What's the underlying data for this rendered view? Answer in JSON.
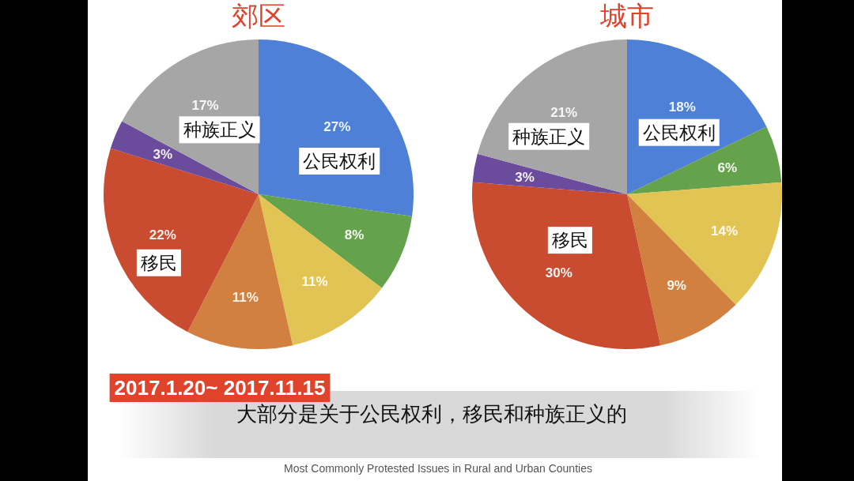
{
  "chart_data": [
    {
      "type": "pie",
      "title": "郊区",
      "categories": [
        "公民权利",
        null,
        null,
        null,
        "移民",
        null,
        "种族正义"
      ],
      "values": [
        27,
        8,
        11,
        11,
        22,
        3,
        17
      ],
      "colors": [
        "#4d80d6",
        "#64a24c",
        "#e2c454",
        "#d2803f",
        "#c94b30",
        "#6a4b9c",
        "#a6a6a6"
      ],
      "value_labels": [
        "27%",
        "8%",
        "11%",
        "11%",
        "22%",
        "3%",
        "17%"
      ]
    },
    {
      "type": "pie",
      "title": "城市",
      "categories": [
        "公民权利",
        null,
        null,
        null,
        "移民",
        null,
        "种族正义"
      ],
      "values": [
        18,
        6,
        14,
        9,
        30,
        3,
        21
      ],
      "colors": [
        "#4d80d6",
        "#64a24c",
        "#e2c454",
        "#d2803f",
        "#c94b30",
        "#6a4b9c",
        "#a6a6a6"
      ],
      "value_labels": [
        "18%",
        "6%",
        "14%",
        "9%",
        "30%",
        "3%",
        "21%"
      ]
    },
    {
      "type": "other",
      "annotations": [
        "2017.1.20~ 2017.11.15",
        "大部分是关于公民权利，移民和种族正义的",
        "Most Commonly Protested Issues in Rural and Urban Counties"
      ]
    }
  ]
}
